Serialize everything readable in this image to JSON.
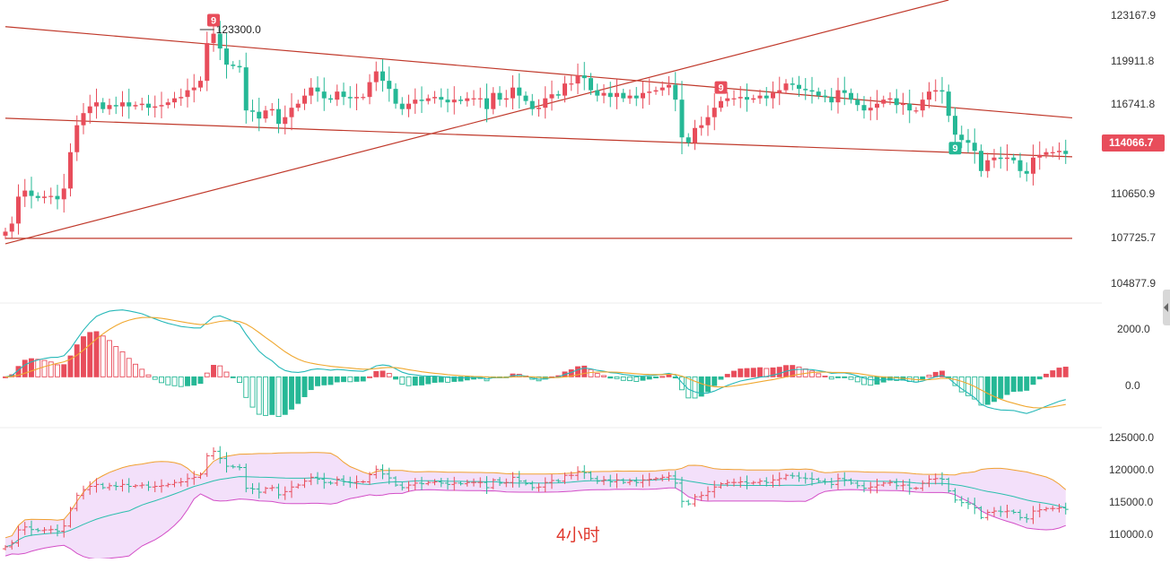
{
  "colors": {
    "up": "#e84d5b",
    "down": "#26b896",
    "trendline": "#c0392b",
    "macd_line": "#26b8b8",
    "signal_line": "#f0a830",
    "bb_upper": "#f0a030",
    "bb_lower": "#d34fc7",
    "bb_fill": "#f3e0fa",
    "bb_mid": "#2bbfad"
  },
  "timeframe_label": "4小时",
  "price_tag": "114066.7",
  "chart_data": [
    {
      "type": "candlestick",
      "title": "",
      "ylim": [
        103000,
        125500
      ],
      "y_ticks": [
        "123167.9",
        "119911.8",
        "116741.8",
        "110650.9",
        "107725.7",
        "104877.9"
      ],
      "peak_annotation": {
        "text": "123300.0",
        "bar_index": 31,
        "value": 123300.0
      },
      "td_markers": [
        {
          "label": "9",
          "bar_index": 32,
          "kind": "sell"
        },
        {
          "label": "9",
          "bar_index": 110,
          "kind": "sell"
        },
        {
          "label": "9",
          "bar_index": 146,
          "kind": "buy"
        }
      ],
      "trendlines": [
        {
          "from": [
            0,
            107400
          ],
          "to": [
            145,
            125500
          ]
        },
        {
          "from": [
            0,
            123520
          ],
          "to": [
            164,
            116750
          ]
        },
        {
          "from": [
            0,
            116720
          ],
          "to": [
            164,
            113860
          ]
        },
        {
          "from": [
            0,
            107800
          ],
          "to": [
            164,
            107800
          ]
        }
      ],
      "closes": [
        108300,
        108900,
        110900,
        111350,
        110950,
        110800,
        110900,
        110950,
        110700,
        111500,
        114200,
        116200,
        117100,
        117600,
        117900,
        117400,
        117700,
        117600,
        117900,
        117600,
        117700,
        117800,
        117500,
        117600,
        117700,
        117900,
        118200,
        118300,
        118800,
        119000,
        119500,
        122300,
        123000,
        121900,
        120700,
        120600,
        120500,
        117300,
        117200,
        116700,
        117300,
        117400,
        116300,
        116800,
        117500,
        117800,
        118400,
        119000,
        118700,
        118200,
        118100,
        118700,
        118300,
        118200,
        118300,
        118300,
        119400,
        120200,
        119500,
        118900,
        117800,
        117400,
        117800,
        118100,
        118000,
        118200,
        118300,
        118100,
        117900,
        118100,
        118000,
        118200,
        118200,
        118200,
        117400,
        118600,
        118100,
        118200,
        119000,
        118400,
        118000,
        117400,
        117500,
        118200,
        118500,
        118400,
        119300,
        119300,
        119900,
        119700,
        118800,
        118400,
        118600,
        118300,
        118600,
        118200,
        118400,
        118200,
        118600,
        118700,
        118800,
        119000,
        119200,
        118100,
        115300,
        114900,
        116000,
        116200,
        116800,
        117500,
        118000,
        118200,
        118200,
        118300,
        118100,
        118200,
        118400,
        118200,
        118600,
        118800,
        119300,
        119200,
        118900,
        118800,
        118700,
        118400,
        118300,
        117900,
        118800,
        118600,
        118100,
        117700,
        117300,
        117500,
        117800,
        118100,
        118200,
        117700,
        117800,
        117300,
        117300,
        118100,
        118700,
        118800,
        118700,
        116900,
        115500,
        115100,
        114900,
        114300,
        112800,
        113600,
        113800,
        113700,
        113800,
        113600,
        112800,
        112600,
        113800,
        114000,
        114200,
        114200,
        114300,
        114066.7
      ],
      "opens": [
        108000,
        108300,
        108900,
        110900,
        111350,
        110950,
        110800,
        110900,
        110950,
        110700,
        111500,
        114200,
        116200,
        117100,
        117600,
        117900,
        117400,
        117700,
        117600,
        117900,
        117600,
        117700,
        117800,
        117500,
        117600,
        117700,
        117900,
        118200,
        118300,
        118800,
        119000,
        119500,
        122300,
        123000,
        121900,
        120700,
        120600,
        120500,
        117300,
        117200,
        116700,
        117300,
        117400,
        116300,
        116800,
        117500,
        117800,
        118400,
        119000,
        118700,
        118200,
        118100,
        118700,
        118300,
        118200,
        118300,
        118300,
        119400,
        120200,
        119500,
        118900,
        117800,
        117400,
        117800,
        118100,
        118000,
        118200,
        118300,
        118100,
        117900,
        118100,
        118000,
        118200,
        118200,
        118200,
        117400,
        118600,
        118100,
        118200,
        119000,
        118400,
        118000,
        117400,
        117500,
        118200,
        118500,
        118400,
        119300,
        119300,
        119900,
        119700,
        118800,
        118400,
        118600,
        118300,
        118600,
        118200,
        118400,
        118200,
        118600,
        118700,
        118800,
        119000,
        119200,
        118100,
        115300,
        114900,
        116000,
        116200,
        116800,
        117500,
        118000,
        118200,
        118200,
        118300,
        118100,
        118200,
        118400,
        118200,
        118600,
        118800,
        119300,
        119200,
        118900,
        118800,
        118700,
        118400,
        118300,
        117900,
        118800,
        118600,
        118100,
        117700,
        117300,
        117500,
        117800,
        118100,
        118200,
        117700,
        117800,
        117300,
        117300,
        118100,
        118700,
        118800,
        118700,
        116900,
        115500,
        115100,
        114900,
        114300,
        112800,
        113600,
        113800,
        113700,
        113800,
        113600,
        112800,
        112600,
        113800,
        114000,
        114200,
        114200,
        114300
      ]
    },
    {
      "type": "bar+line",
      "title": "",
      "y_ticks": [
        "2000.0",
        "0.0"
      ],
      "ylim": [
        -1800,
        2600
      ]
    },
    {
      "type": "line",
      "title": "",
      "y_ticks": [
        "125000.0",
        "120000.0",
        "115000.0",
        "110000.0"
      ],
      "ylim": [
        106500,
        126500
      ]
    }
  ]
}
